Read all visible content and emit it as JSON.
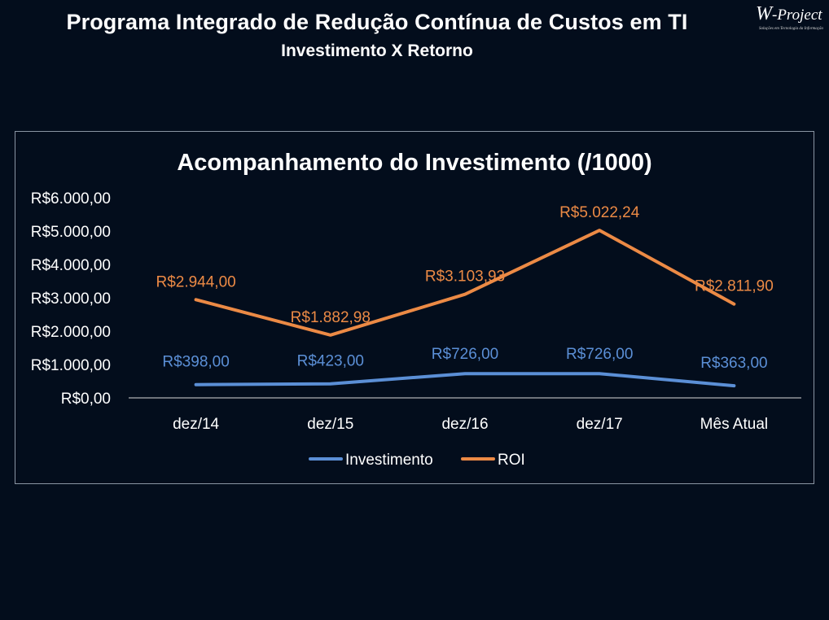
{
  "header": {
    "title": "Programa Integrado de Redução Contínua de Custos em TI",
    "subtitle": "Investimento X Retorno"
  },
  "logo": {
    "letter": "W",
    "text": "-Project",
    "tagline": "Soluções em Tecnologia da Informação"
  },
  "chart_data": {
    "type": "line",
    "title": "Acompanhamento do Investimento (/1000)",
    "xlabel": "",
    "ylabel": "",
    "categories": [
      "dez/14",
      "dez/15",
      "dez/16",
      "dez/17",
      "Mês Atual"
    ],
    "ylim": [
      0,
      6000
    ],
    "yticks": [
      0,
      1000,
      2000,
      3000,
      4000,
      5000,
      6000
    ],
    "ytick_labels": [
      "R$0,00",
      "R$1.000,00",
      "R$2.000,00",
      "R$3.000,00",
      "R$4.000,00",
      "R$5.000,00",
      "R$6.000,00"
    ],
    "grid": false,
    "legend_position": "bottom",
    "series": [
      {
        "name": "Investimento",
        "color": "#5b8fd6",
        "values": [
          398,
          423,
          726,
          726,
          363
        ],
        "labels": [
          "R$398,00",
          "R$423,00",
          "R$726,00",
          "R$726,00",
          "R$363,00"
        ]
      },
      {
        "name": "ROI",
        "color": "#ec8a45",
        "values": [
          2944,
          1882.98,
          3103.93,
          5022.24,
          2811.9
        ],
        "labels": [
          "R$2.944,00",
          "R$1.882,98",
          "R$3.103,93",
          "R$5.022,24",
          "R$2.811,90"
        ]
      }
    ]
  }
}
